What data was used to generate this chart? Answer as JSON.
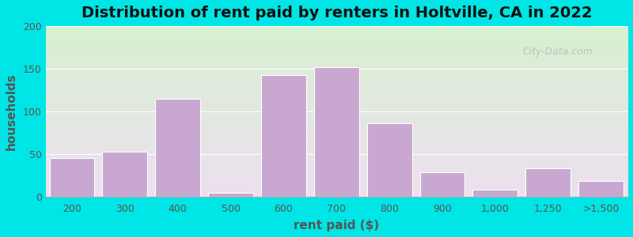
{
  "title": "Distribution of rent paid by renters in Holtville, CA in 2022",
  "xlabel": "rent paid ($)",
  "ylabel": "households",
  "categories": [
    "200",
    "300",
    "400",
    "500",
    "600",
    "700",
    "800",
    "900",
    "1,000",
    "1,250",
    ">1,500"
  ],
  "values": [
    45,
    53,
    115,
    5,
    143,
    152,
    86,
    29,
    8,
    33,
    19
  ],
  "bar_color": "#c8a8d0",
  "bar_edge_color": "#ffffff",
  "ylim": [
    0,
    200
  ],
  "yticks": [
    0,
    50,
    100,
    150,
    200
  ],
  "background_outer": "#00e5e5",
  "gradient_top": "#d8f0d0",
  "gradient_bottom": "#ede0f0",
  "title_fontsize": 14,
  "axis_label_fontsize": 11,
  "tick_fontsize": 9,
  "watermark_text": "City-Data.com"
}
